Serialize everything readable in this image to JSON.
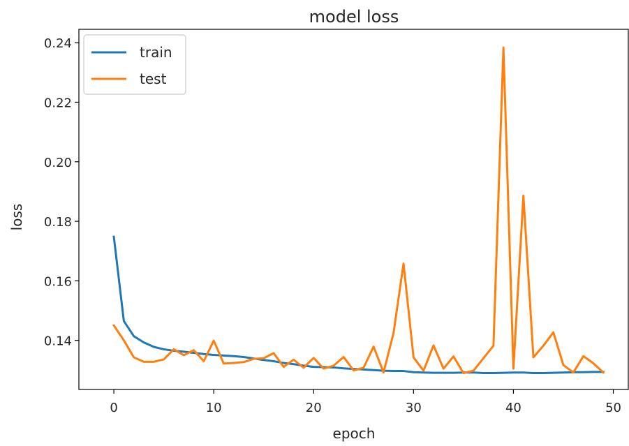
{
  "chart_data": {
    "type": "line",
    "title": "model loss",
    "xlabel": "epoch",
    "ylabel": "loss",
    "xlim": [
      -3.5,
      51.5
    ],
    "ylim": [
      0.1235,
      0.2445
    ],
    "xticks": [
      0,
      10,
      20,
      30,
      40,
      50
    ],
    "yticks": [
      0.14,
      0.16,
      0.18,
      0.2,
      0.22,
      0.24
    ],
    "xtick_labels": [
      "0",
      "10",
      "20",
      "30",
      "40",
      "50"
    ],
    "ytick_labels": [
      "0.14",
      "0.16",
      "0.18",
      "0.20",
      "0.22",
      "0.24"
    ],
    "grid": false,
    "legend_position": "top-left",
    "x": [
      0,
      1,
      2,
      3,
      4,
      5,
      6,
      7,
      8,
      9,
      10,
      11,
      12,
      13,
      14,
      15,
      16,
      17,
      18,
      19,
      20,
      21,
      22,
      23,
      24,
      25,
      26,
      27,
      28,
      29,
      30,
      31,
      32,
      33,
      34,
      35,
      36,
      37,
      38,
      39,
      40,
      41,
      42,
      43,
      44,
      45,
      46,
      47,
      48,
      49
    ],
    "series": [
      {
        "name": "train",
        "color": "#1f77b4",
        "values": [
          0.1748,
          0.1465,
          0.1414,
          0.1393,
          0.1378,
          0.137,
          0.1365,
          0.1362,
          0.1358,
          0.1354,
          0.1351,
          0.1349,
          0.1347,
          0.1344,
          0.1339,
          0.1334,
          0.133,
          0.1324,
          0.132,
          0.1315,
          0.1311,
          0.131,
          0.1309,
          0.1306,
          0.1304,
          0.1302,
          0.13,
          0.1298,
          0.1297,
          0.1297,
          0.1293,
          0.1292,
          0.1291,
          0.1291,
          0.1291,
          0.1292,
          0.1292,
          0.129,
          0.129,
          0.1291,
          0.1292,
          0.1292,
          0.129,
          0.129,
          0.1291,
          0.1292,
          0.1293,
          0.1293,
          0.1294,
          0.1294
        ]
      },
      {
        "name": "test",
        "color": "#ff7f0e",
        "values": [
          0.145,
          0.14,
          0.1343,
          0.1328,
          0.1328,
          0.1336,
          0.137,
          0.135,
          0.1367,
          0.133,
          0.1399,
          0.1322,
          0.1324,
          0.1327,
          0.1338,
          0.134,
          0.1357,
          0.1311,
          0.1335,
          0.1308,
          0.1341,
          0.1305,
          0.1315,
          0.1344,
          0.1299,
          0.1308,
          0.1379,
          0.1292,
          0.1425,
          0.1658,
          0.1343,
          0.1298,
          0.1383,
          0.1305,
          0.1346,
          0.129,
          0.1298,
          0.134,
          0.1382,
          0.2384,
          0.1305,
          0.1886,
          0.1343,
          0.1382,
          0.1427,
          0.1317,
          0.1292,
          0.1347,
          0.1323,
          0.1292
        ]
      }
    ]
  }
}
